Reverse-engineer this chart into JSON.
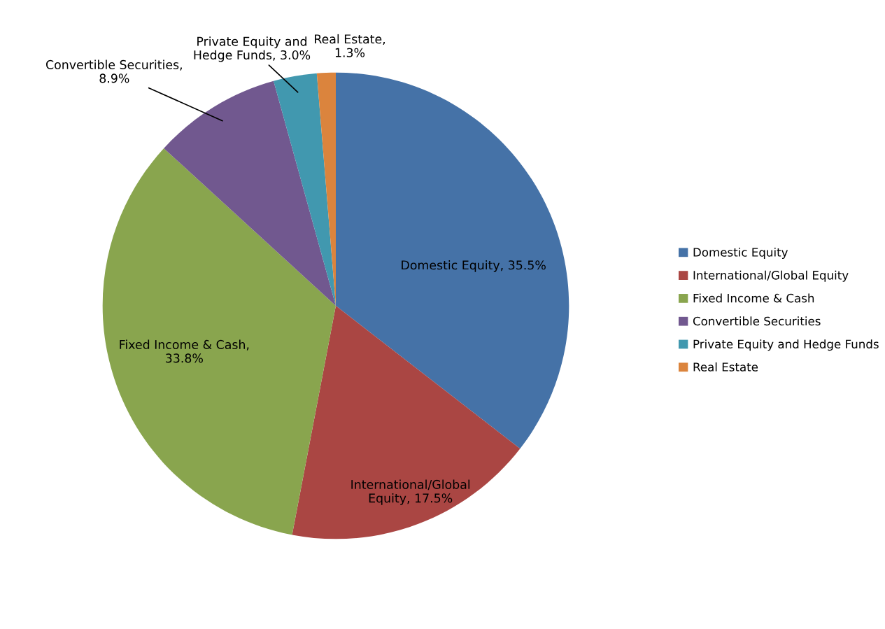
{
  "chart_data": {
    "type": "pie",
    "categories": [
      "Domestic Equity",
      "International/Global Equity",
      "Fixed Income & Cash",
      "Convertible Securities",
      "Private Equity and Hedge Funds",
      "Real Estate"
    ],
    "values": [
      35.5,
      17.5,
      33.8,
      8.9,
      3.0,
      1.3
    ],
    "colors": [
      "#4572a7",
      "#aa4643",
      "#89a54e",
      "#71588f",
      "#4198af",
      "#db843d"
    ],
    "value_labels": [
      "Domestic Equity, 35.5%",
      "International/Global\nEquity, 17.5%",
      "Fixed Income & Cash,\n33.8%",
      "Convertible Securities,\n8.9%",
      "Private Equity and\nHedge Funds, 3.0%",
      "Real Estate,\n1.3%"
    ],
    "legend": "right"
  }
}
